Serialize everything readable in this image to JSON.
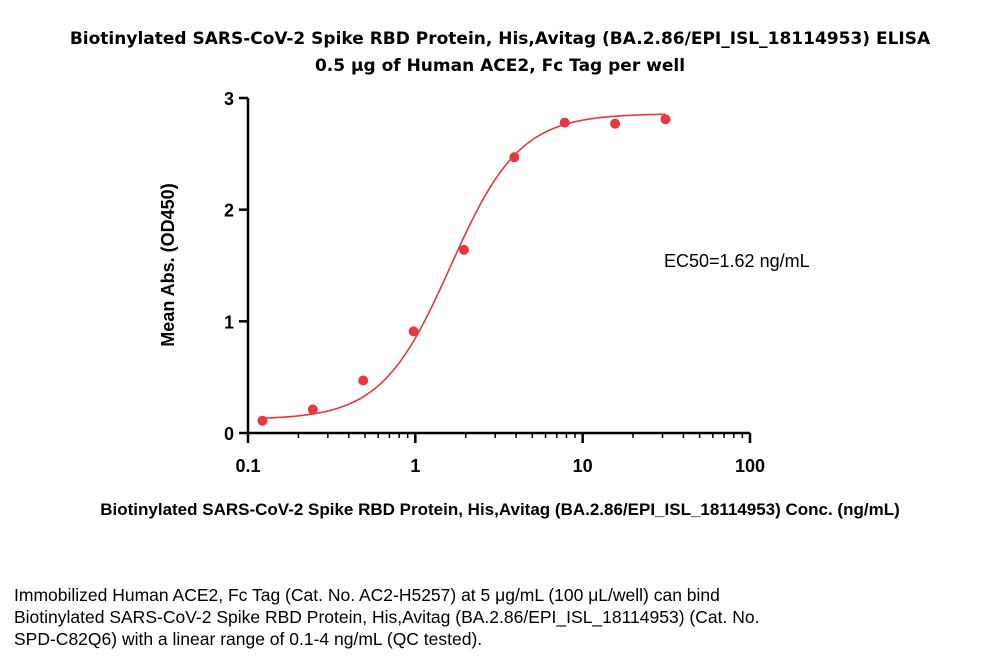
{
  "chart_data": {
    "type": "scatter",
    "title": "Biotinylated SARS-CoV-2 Spike RBD Protein, His,Avitag (BA.2.86/EPI_ISL_18114953) ELISA",
    "subtitle": "0.5 μg of Human ACE2, Fc Tag per well",
    "xlabel": "Biotinylated SARS-CoV-2 Spike RBD Protein, His,Avitag (BA.2.86/EPI_ISL_18114953) Conc. (ng/mL)",
    "ylabel": "Mean Abs. (OD450)",
    "xscale": "log",
    "xlim": [
      0.1,
      100
    ],
    "ylim": [
      0,
      3
    ],
    "xticks": [
      "0.1",
      "1",
      "10",
      "100"
    ],
    "yticks": [
      "0",
      "1",
      "2",
      "3"
    ],
    "points": {
      "x": [
        0.122,
        0.244,
        0.488,
        0.977,
        1.953,
        3.906,
        7.813,
        15.625,
        31.25
      ],
      "y": [
        0.11,
        0.21,
        0.47,
        0.91,
        1.64,
        2.47,
        2.78,
        2.77,
        2.81
      ]
    },
    "fit": {
      "bottom": 0.12,
      "top": 2.86,
      "ec50": 1.62,
      "hill": 2.1
    },
    "annotation": "EC50=1.62 ng/mL",
    "colors": {
      "points": "#e8383d",
      "curve": "#e8383d",
      "axis": "#000000"
    }
  },
  "caption": [
    "Immobilized Human ACE2, Fc Tag (Cat. No. AC2-H5257) at 5 μg/mL (100 μL/well) can bind",
    "Biotinylated SARS-CoV-2 Spike RBD Protein, His,Avitag (BA.2.86/EPI_ISL_18114953) (Cat. No.",
    "SPD-C82Q6) with a linear range of 0.1-4 ng/mL (QC tested)."
  ]
}
